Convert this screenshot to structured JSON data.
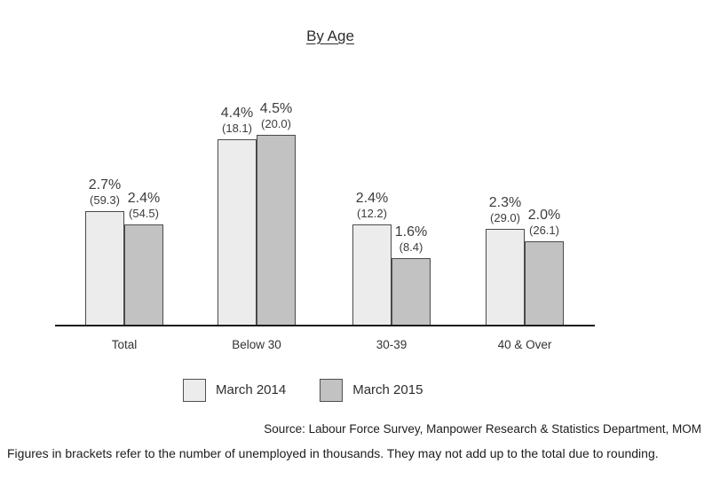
{
  "title": "By Age",
  "chart_data": {
    "type": "bar",
    "title": "By Age",
    "categories": [
      "Total",
      "Below 30",
      "30-39",
      "40 & Over"
    ],
    "series": [
      {
        "name": "March 2014",
        "color": "#ececec",
        "values": [
          2.7,
          4.4,
          2.4,
          2.3
        ],
        "counts_thousands": [
          59.3,
          18.1,
          12.2,
          29.0
        ]
      },
      {
        "name": "March 2015",
        "color": "#c2c2c2",
        "values": [
          2.4,
          4.5,
          1.6,
          2.0
        ],
        "counts_thousands": [
          54.5,
          20.0,
          8.4,
          26.1
        ]
      }
    ],
    "value_label_format": "percent_with_count_in_brackets",
    "unit": "%",
    "bracket_unit": "thousands unemployed",
    "xlabel": "",
    "ylabel": "",
    "ylim": [
      0,
      5
    ],
    "grid": false,
    "legend_position": "bottom"
  },
  "legend": {
    "items": [
      {
        "label": "March 2014",
        "color": "#ececec"
      },
      {
        "label": "March 2015",
        "color": "#c2c2c2"
      }
    ]
  },
  "footer": {
    "source": "Source: Labour Force Survey, Manpower Research & Statistics Department, MOM",
    "note": "Figures in brackets refer to the number of unemployed in thousands. They may not add up to the total due to rounding."
  },
  "colors": {
    "bar_border": "#4a4a4a",
    "axis": "#1a1a1a",
    "text": "#3c3c3c"
  }
}
